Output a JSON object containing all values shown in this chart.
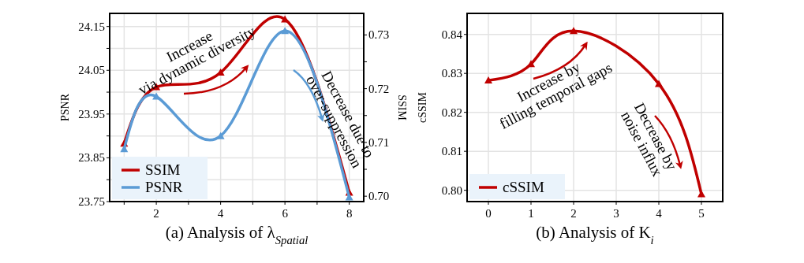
{
  "chart_data": [
    {
      "type": "line",
      "title": "(a) Analysis of λ$_{Spatial}$",
      "ylabel": "PSNR",
      "y2label": "SSIM",
      "x": [
        1,
        2,
        4,
        6,
        8
      ],
      "series": [
        {
          "name": "SSIM",
          "color": "#c00000",
          "axis": "y2",
          "values": [
            0.7098,
            0.7203,
            0.723,
            0.7329,
            0.7007
          ]
        },
        {
          "name": "PSNR",
          "color": "#5b9bd5",
          "values": [
            23.87,
            23.99,
            23.9,
            24.14,
            23.76
          ]
        }
      ],
      "xlim": [
        0.55,
        8.45
      ],
      "xticks": [
        {
          "value": 1,
          "label": null
        },
        2,
        {
          "value": 3,
          "label": null
        },
        4,
        {
          "value": 5,
          "label": null
        },
        6,
        {
          "value": 7,
          "label": null
        },
        8
      ],
      "ylim": [
        23.75,
        24.18
      ],
      "yticks": [
        23.75,
        {
          "value": 23.8,
          "label": null
        },
        23.85,
        {
          "value": 23.9,
          "label": null
        },
        23.95,
        {
          "value": 24.0,
          "label": null
        },
        24.05,
        {
          "value": 24.1,
          "label": null
        },
        24.15
      ],
      "y2lim": [
        0.699,
        0.734
      ],
      "y2ticks": [
        {
          "value": 0.7,
          "label": "0.70"
        },
        {
          "value": 0.705,
          "label": null
        },
        0.71,
        {
          "value": 0.715,
          "label": null
        },
        0.72,
        {
          "value": 0.725,
          "label": null
        },
        0.73
      ],
      "annotations": [
        "Increase\nvia dynamic diversity",
        "Decrease due to\nover-suppression"
      ],
      "grid": true,
      "legend": "bottom left",
      "marker": "triangle",
      "line_style": "solid"
    },
    {
      "type": "line",
      "title": "(b) Analysis of K$_{i}$",
      "ylabel": "cSSIM",
      "x": [
        0,
        1,
        2,
        4,
        5
      ],
      "series": [
        {
          "name": "cSSIM",
          "color": "#c00000",
          "values": [
            0.8282,
            0.8324,
            0.8409,
            0.8273,
            0.799
          ]
        }
      ],
      "xlim": [
        -0.5,
        5.5
      ],
      "xticks": [
        0,
        1,
        2,
        3,
        4,
        5
      ],
      "ylim": [
        0.7971,
        0.8454
      ],
      "yticks": [
        {
          "value": 0.8,
          "label": "0.80"
        },
        0.81,
        0.82,
        0.83,
        0.84
      ],
      "annotations": [
        "Increase by\nfilling temporal gaps",
        "Decrease by\nnoise influx"
      ],
      "grid": true,
      "legend": "bottom left",
      "marker": "triangle",
      "line_style": "solid"
    }
  ]
}
